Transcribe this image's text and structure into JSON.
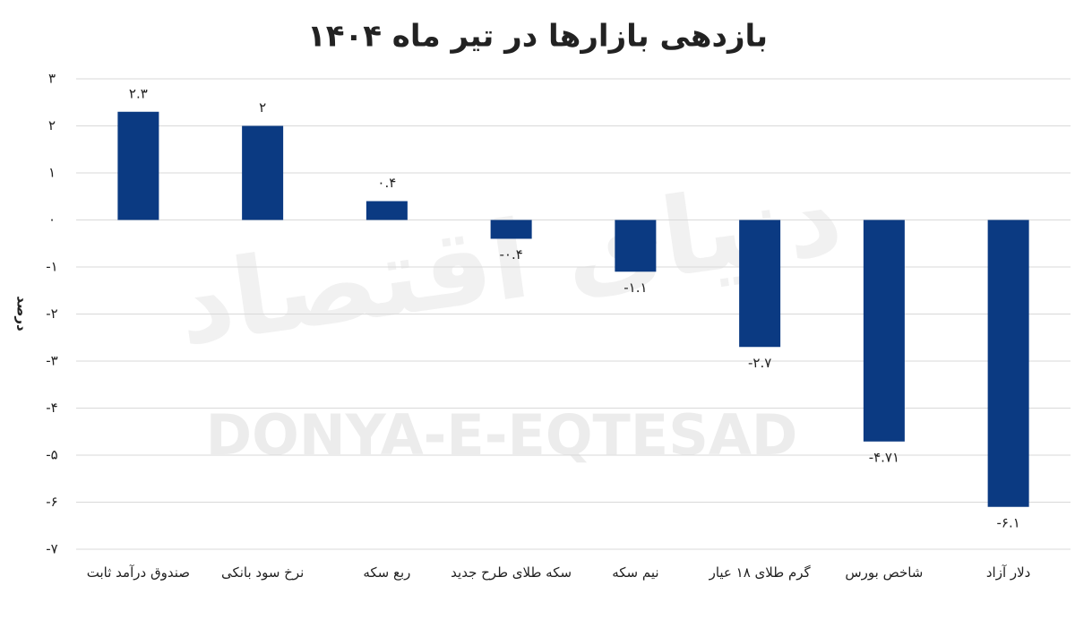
{
  "chart_data": {
    "type": "bar",
    "title": "بازدهی بازارها در تیر ماه ۱۴۰۴",
    "y_label": "درصد",
    "watermark": "DONYA-E-EQTESAD",
    "watermark_fa": "دنیای اقتصاد",
    "categories": [
      "صندوق درآمد ثابت",
      "نرخ سود بانکی",
      "ربع سکه",
      "سکه طلای طرح جدید",
      "نیم سکه",
      "گرم طلای ۱۸ عیار",
      "شاخص بورس",
      "دلار آزاد"
    ],
    "values": [
      2.3,
      2,
      0.4,
      -0.4,
      -1.1,
      -2.7,
      -4.71,
      -6.1
    ],
    "value_labels": [
      "۲.۳",
      "۲",
      "۰.۴",
      "-۰.۴",
      "-۱.۱",
      "-۲.۷",
      "-۴.۷۱",
      "-۶.۱"
    ],
    "color": "#0b3a82",
    "ylim": [
      -7,
      3
    ],
    "yticks": [
      {
        "value": 3,
        "label": "۳"
      },
      {
        "value": 2,
        "label": "۲"
      },
      {
        "value": 1,
        "label": "۱"
      },
      {
        "value": 0,
        "label": "۰"
      },
      {
        "value": -1,
        "label": "-۱"
      },
      {
        "value": -2,
        "label": "-۲"
      },
      {
        "value": -3,
        "label": "-۳"
      },
      {
        "value": -4,
        "label": "-۴"
      },
      {
        "value": -5,
        "label": "-۵"
      },
      {
        "value": -6,
        "label": "-۶"
      },
      {
        "value": -7,
        "label": "-۷"
      }
    ],
    "grid": true
  }
}
